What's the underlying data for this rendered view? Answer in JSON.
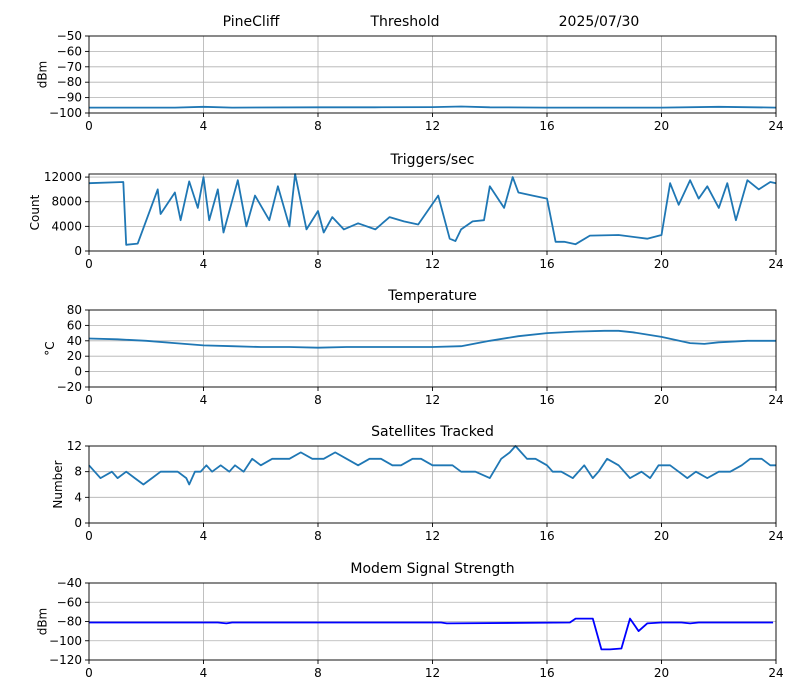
{
  "header": {
    "station": "PineCliff",
    "label": "Threshold",
    "date": "2025/07/30"
  },
  "chart_data": [
    {
      "type": "line",
      "title": "",
      "ylabel": "dBm",
      "xlim": [
        0,
        24
      ],
      "ylim": [
        -100,
        -50
      ],
      "xticks": [
        0,
        4,
        8,
        12,
        16,
        20,
        24
      ],
      "yticks": [
        -50,
        -60,
        -70,
        -80,
        -90,
        -100
      ],
      "grid": true,
      "series": [
        {
          "color": "#1f77b4",
          "x": [
            0,
            3,
            4,
            5,
            8,
            10,
            12,
            13,
            14,
            16,
            18,
            20,
            22,
            24
          ],
          "y": [
            -96.5,
            -96.5,
            -96.0,
            -96.5,
            -96.3,
            -96.3,
            -96.2,
            -95.8,
            -96.3,
            -96.5,
            -96.5,
            -96.5,
            -96.0,
            -96.5
          ]
        }
      ]
    },
    {
      "type": "line",
      "title": "Triggers/sec",
      "ylabel": "Count",
      "xlim": [
        0,
        24
      ],
      "ylim": [
        0,
        12500
      ],
      "xticks": [
        0,
        4,
        8,
        12,
        16,
        20,
        24
      ],
      "yticks": [
        0,
        4000,
        8000,
        12000
      ],
      "grid": true,
      "series": [
        {
          "color": "#1f77b4",
          "x": [
            0,
            1.2,
            1.3,
            1.7,
            2.4,
            2.5,
            3.0,
            3.2,
            3.5,
            3.8,
            4.0,
            4.2,
            4.5,
            4.7,
            5.2,
            5.5,
            5.8,
            6.3,
            6.6,
            7.0,
            7.2,
            7.6,
            8.0,
            8.2,
            8.5,
            8.9,
            9.4,
            10.0,
            10.5,
            11.0,
            11.5,
            12.2,
            12.6,
            12.8,
            13.0,
            13.4,
            13.8,
            14.0,
            14.5,
            14.8,
            15.0,
            15.5,
            16.0,
            16.3,
            16.6,
            17.0,
            17.5,
            18.5,
            19.5,
            20.0,
            20.3,
            20.6,
            21.0,
            21.3,
            21.6,
            22.0,
            22.3,
            22.6,
            23.0,
            23.4,
            23.8,
            24.0
          ],
          "y": [
            11000,
            11200,
            1000,
            1200,
            10000,
            6000,
            9500,
            5000,
            11300,
            7000,
            12000,
            5000,
            10000,
            3000,
            11500,
            4000,
            9000,
            5000,
            10500,
            4000,
            12500,
            3500,
            6500,
            3000,
            5500,
            3500,
            4500,
            3500,
            5500,
            4800,
            4300,
            9000,
            2000,
            1600,
            3500,
            4800,
            5000,
            10500,
            7000,
            12000,
            9500,
            9000,
            8500,
            1500,
            1500,
            1100,
            2500,
            2600,
            2000,
            2600,
            11000,
            7500,
            11500,
            8500,
            10500,
            7000,
            11000,
            5000,
            11500,
            10000,
            11200,
            11000
          ]
        }
      ]
    },
    {
      "type": "line",
      "title": "Temperature",
      "ylabel": "°C",
      "xlim": [
        0,
        24
      ],
      "ylim": [
        -20,
        80
      ],
      "xticks": [
        0,
        4,
        8,
        12,
        16,
        20,
        24
      ],
      "yticks": [
        80,
        60,
        40,
        20,
        0,
        -20
      ],
      "grid": true,
      "series": [
        {
          "color": "#1f77b4",
          "x": [
            0,
            1,
            2,
            3,
            4,
            5,
            6,
            7,
            8,
            9,
            10,
            11,
            12,
            13,
            14,
            15,
            16,
            17,
            18,
            18.5,
            19,
            20,
            21,
            21.5,
            22,
            23,
            24
          ],
          "y": [
            43,
            42,
            40,
            37,
            34,
            33,
            32,
            32,
            31,
            32,
            32,
            32,
            32,
            33,
            40,
            46,
            50,
            52,
            53,
            53,
            51,
            45,
            37,
            36,
            38,
            40,
            40
          ]
        }
      ]
    },
    {
      "type": "line",
      "title": "Satellites Tracked",
      "ylabel": "Number",
      "xlim": [
        0,
        24
      ],
      "ylim": [
        0,
        12
      ],
      "xticks": [
        0,
        4,
        8,
        12,
        16,
        20,
        24
      ],
      "yticks": [
        0,
        4,
        8,
        12
      ],
      "grid": true,
      "series": [
        {
          "color": "#1f77b4",
          "x": [
            0,
            0.2,
            0.4,
            0.8,
            1.0,
            1.3,
            1.6,
            1.9,
            2.2,
            2.5,
            2.8,
            3.1,
            3.4,
            3.5,
            3.7,
            3.9,
            4.1,
            4.3,
            4.6,
            4.9,
            5.1,
            5.4,
            5.7,
            6.0,
            6.4,
            6.7,
            7.0,
            7.4,
            7.8,
            8.2,
            8.6,
            9.0,
            9.4,
            9.8,
            10.2,
            10.6,
            10.9,
            11.3,
            11.6,
            12.0,
            12.3,
            12.7,
            13.0,
            13.5,
            14.0,
            14.4,
            14.7,
            14.9,
            15.1,
            15.3,
            15.6,
            16.0,
            16.2,
            16.5,
            16.9,
            17.3,
            17.6,
            17.8,
            18.1,
            18.5,
            18.9,
            19.3,
            19.6,
            19.9,
            20.3,
            20.6,
            20.9,
            21.2,
            21.6,
            22.0,
            22.4,
            22.8,
            23.1,
            23.5,
            23.8,
            24.0
          ],
          "y": [
            9,
            8,
            7,
            8,
            7,
            8,
            7,
            6,
            7,
            8,
            8,
            8,
            7,
            6,
            8,
            8,
            9,
            8,
            9,
            8,
            9,
            8,
            10,
            9,
            10,
            10,
            10,
            11,
            10,
            10,
            11,
            10,
            9,
            10,
            10,
            9,
            9,
            10,
            10,
            9,
            9,
            9,
            8,
            8,
            7,
            10,
            11,
            12,
            11,
            10,
            10,
            9,
            8,
            8,
            7,
            9,
            7,
            8,
            10,
            9,
            7,
            8,
            7,
            9,
            9,
            8,
            7,
            8,
            7,
            8,
            8,
            9,
            10,
            10,
            9,
            9
          ]
        }
      ]
    },
    {
      "type": "line",
      "title": "Modem Signal Strength",
      "ylabel": "dBm",
      "xlim": [
        0,
        24
      ],
      "ylim": [
        -120,
        -40
      ],
      "xticks": [
        0,
        4,
        8,
        12,
        16,
        20,
        24
      ],
      "yticks": [
        -40,
        -60,
        -80,
        -100,
        -120
      ],
      "grid": true,
      "series": [
        {
          "color": "#0000ff",
          "x": [
            0,
            4.5,
            4.8,
            5.0,
            12.3,
            12.5,
            16.8,
            17.0,
            17.6,
            17.9,
            18.2,
            18.6,
            18.9,
            19.2,
            19.5,
            20.0,
            20.7,
            21.0,
            21.3,
            23.9
          ],
          "y": [
            -81,
            -81,
            -82,
            -81,
            -81,
            -82,
            -81,
            -77,
            -77,
            -109,
            -109,
            -108,
            -77,
            -90,
            -82,
            -81,
            -81,
            -82,
            -81,
            -81
          ]
        }
      ]
    }
  ]
}
